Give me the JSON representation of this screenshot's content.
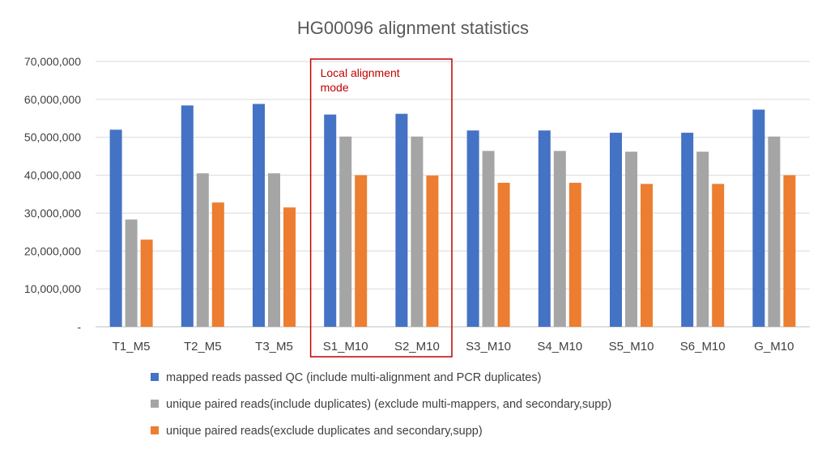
{
  "chart_data": {
    "type": "bar",
    "title": "HG00096 alignment statistics",
    "categories": [
      "T1_M5",
      "T2_M5",
      "T3_M5",
      "S1_M10",
      "S2_M10",
      "S3_M10",
      "S4_M10",
      "S5_M10",
      "S6_M10",
      "G_M10"
    ],
    "series": [
      {
        "name": "mapped reads passed QC (include multi-alignment and PCR duplicates)",
        "color": "#4472c4",
        "values": [
          52000000,
          58400000,
          58800000,
          56000000,
          56200000,
          51800000,
          51800000,
          51200000,
          51200000,
          57300000
        ]
      },
      {
        "name": "unique paired reads(include duplicates)  (exclude multi-mappers, and secondary,supp)",
        "color": "#a5a5a5",
        "values": [
          28300000,
          40500000,
          40500000,
          50200000,
          50200000,
          46400000,
          46400000,
          46200000,
          46200000,
          50200000
        ]
      },
      {
        "name": "unique paired reads(exclude duplicates and secondary,supp)",
        "color": "#ed7d31",
        "values": [
          23000000,
          32800000,
          31500000,
          40000000,
          39900000,
          38000000,
          38000000,
          37700000,
          37700000,
          40000000
        ]
      }
    ],
    "ylim": [
      0,
      70000000
    ],
    "yticks": [
      0,
      10000000,
      20000000,
      30000000,
      40000000,
      50000000,
      60000000,
      70000000
    ],
    "ytick_labels": [
      "-",
      "10,000,000",
      "20,000,000",
      "30,000,000",
      "40,000,000",
      "50,000,000",
      "60,000,000",
      "70,000,000"
    ],
    "grid": true,
    "legend_position": "bottom",
    "annotation": {
      "text_lines": [
        "Local alignment",
        "mode"
      ],
      "spans_categories": [
        "S1_M10",
        "S2_M10"
      ],
      "color": "#c00000"
    }
  }
}
